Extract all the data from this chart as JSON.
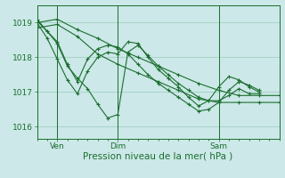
{
  "bg_color": "#cce8e8",
  "grid_color": "#99ccbb",
  "line_color": "#1a6e2e",
  "xlabel": "Pression niveau de la mer( hPa )",
  "xlabel_fontsize": 7.5,
  "yticks": [
    1016,
    1017,
    1018,
    1019
  ],
  "ylim": [
    1015.65,
    1019.5
  ],
  "xlim": [
    0,
    72
  ],
  "xtick_labels": [
    "Ven",
    "Dim",
    "Sam"
  ],
  "xtick_positions": [
    6,
    24,
    54
  ],
  "vline_positions": [
    6,
    24,
    54
  ],
  "series": [
    [
      1019.0,
      1019.1,
      1018.8,
      1018.55,
      1018.25,
      1018.0,
      1017.75,
      1017.5,
      1017.25,
      1017.05,
      1016.9,
      1016.9,
      1016.9
    ],
    [
      1018.85,
      1018.95,
      1018.6,
      1018.1,
      1017.8,
      1017.55,
      1017.3,
      1017.05,
      1016.8,
      1016.7,
      1016.7,
      1016.7,
      1016.7
    ],
    [
      1019.05,
      1018.75,
      1018.4,
      1017.75,
      1017.4,
      1017.1,
      1016.65,
      1016.25,
      1016.35,
      1018.15,
      1018.35,
      1018.05,
      1017.75,
      1017.5,
      1017.25,
      1017.05,
      1016.85,
      1016.75,
      1016.75,
      1016.9,
      1017.1,
      1016.95,
      1016.95
    ],
    [
      1019.1,
      1018.75,
      1018.45,
      1017.8,
      1017.3,
      1017.95,
      1018.25,
      1018.35,
      1018.3,
      1018.1,
      1017.8,
      1017.5,
      1017.25,
      1017.05,
      1016.85,
      1016.65,
      1016.45,
      1016.5,
      1016.7,
      1017.05,
      1017.3,
      1017.2,
      1017.05
    ],
    [
      1019.0,
      1018.55,
      1017.95,
      1017.35,
      1016.95,
      1017.6,
      1018.0,
      1018.15,
      1018.1,
      1018.45,
      1018.4,
      1018.0,
      1017.65,
      1017.4,
      1017.15,
      1016.85,
      1016.6,
      1016.75,
      1017.15,
      1017.45,
      1017.35,
      1017.15,
      1017.0
    ]
  ],
  "series_x": [
    [
      0,
      6,
      12,
      18,
      24,
      30,
      36,
      42,
      48,
      54,
      60,
      66,
      72
    ],
    [
      0,
      6,
      12,
      18,
      24,
      30,
      36,
      42,
      48,
      54,
      60,
      66,
      72
    ],
    [
      0,
      3,
      6,
      9,
      12,
      15,
      18,
      21,
      24,
      27,
      30,
      33,
      36,
      39,
      42,
      45,
      48,
      51,
      54,
      57,
      60,
      63,
      66
    ],
    [
      0,
      3,
      6,
      9,
      12,
      15,
      18,
      21,
      24,
      27,
      30,
      33,
      36,
      39,
      42,
      45,
      48,
      51,
      54,
      57,
      60,
      63,
      66
    ],
    [
      0,
      3,
      6,
      9,
      12,
      15,
      18,
      21,
      24,
      27,
      30,
      33,
      36,
      39,
      42,
      45,
      48,
      51,
      54,
      57,
      60,
      63,
      66
    ]
  ]
}
